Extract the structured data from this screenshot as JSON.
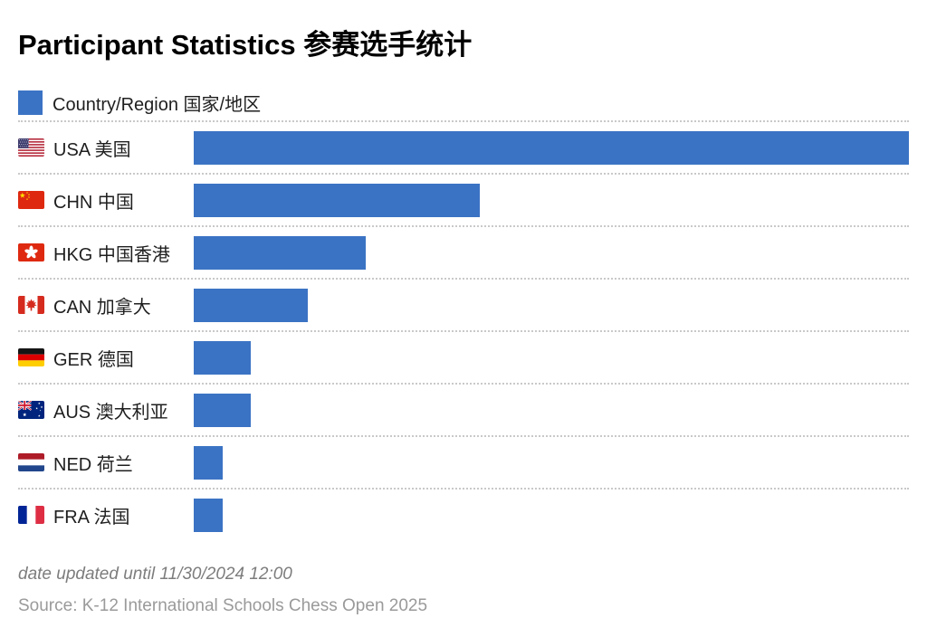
{
  "page": {
    "title": "Participant Statistics 参赛选手统计",
    "legend": {
      "label": "Country/Region 国家/地区"
    },
    "footer": {
      "updated": "date updated until 11/30/2024 12:00",
      "source": "Source: K-12 International Schools Chess Open 2025"
    },
    "colors": {
      "bar_accent": "#3b73c4",
      "separator": "#c9c9c9"
    }
  },
  "chart_data": {
    "type": "bar",
    "orientation": "horizontal",
    "title": "Participant Statistics 参赛选手统计",
    "legend": [
      "Country/Region 国家/地区"
    ],
    "legend_position": "top-left",
    "categories": [
      "USA 美国",
      "CHN 中国",
      "HKG 中国香港",
      "CAN 加拿大",
      "GER 德国",
      "AUS 澳大利亚",
      "NED 荷兰",
      "FRA 法国"
    ],
    "flags": [
      "usa",
      "chn",
      "hkg",
      "can",
      "ger",
      "aus",
      "ned",
      "fra"
    ],
    "flag_icon_names": [
      "usa-flag-icon",
      "chn-flag-icon",
      "hkg-flag-icon",
      "can-flag-icon",
      "ger-flag-icon",
      "aus-flag-icon",
      "ned-flag-icon",
      "fra-flag-icon"
    ],
    "values": [
      25,
      10,
      6,
      4,
      2,
      2,
      1,
      1
    ],
    "values_note": "relative lengths read from bars (ratio 25:10:6:4:2:2:1:1); no numeric labels shown in image",
    "xlim": [
      0,
      25
    ],
    "bar_color": "#3b73c4",
    "grid": "dotted horizontal separators between rows, no axes shown"
  }
}
